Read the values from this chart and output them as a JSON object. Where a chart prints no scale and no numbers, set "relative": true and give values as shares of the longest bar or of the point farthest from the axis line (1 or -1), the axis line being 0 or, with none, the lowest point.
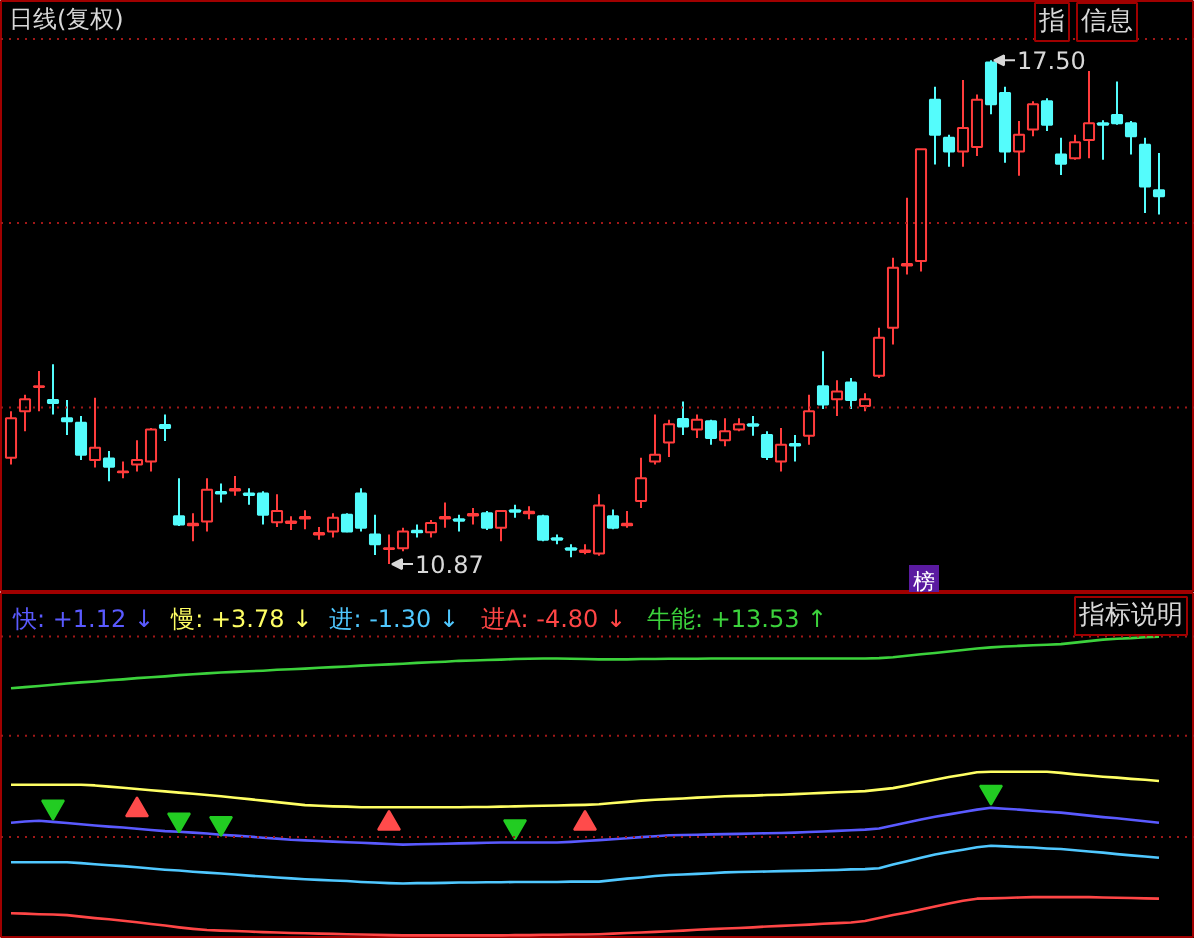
{
  "chart_data": [
    {
      "type": "candlestick",
      "title": "日线(复权)",
      "categories": [
        null,
        null,
        null,
        null,
        null,
        null,
        null,
        null,
        null,
        null,
        null,
        null,
        null,
        null,
        null,
        null,
        null,
        null,
        null,
        null,
        null,
        null,
        null,
        null,
        null,
        null,
        null,
        null,
        null,
        null,
        null,
        null,
        null,
        null,
        null,
        null,
        null,
        null,
        null,
        null,
        null,
        null,
        null,
        null,
        null,
        null,
        null,
        null,
        null,
        null,
        null,
        null,
        null,
        null,
        null,
        null,
        null,
        null,
        null,
        null,
        null,
        null,
        null,
        null,
        null,
        null,
        null,
        null,
        null,
        null,
        null,
        null,
        null,
        null,
        null,
        null,
        null,
        null,
        null,
        null,
        null,
        null,
        null
      ],
      "ohlc": [
        [
          12.27,
          12.88,
          12.18,
          12.79
        ],
        [
          12.88,
          13.1,
          12.62,
          13.04
        ],
        [
          13.2,
          13.41,
          12.88,
          13.21
        ],
        [
          13.03,
          13.5,
          12.84,
          12.99
        ],
        [
          12.79,
          13.03,
          12.57,
          12.75
        ],
        [
          12.73,
          12.82,
          12.24,
          12.31
        ],
        [
          12.24,
          13.06,
          12.14,
          12.4
        ],
        [
          12.26,
          12.36,
          11.96,
          12.15
        ],
        [
          12.08,
          12.22,
          12.0,
          12.09
        ],
        [
          12.18,
          12.5,
          12.09,
          12.24
        ],
        [
          12.22,
          12.66,
          12.09,
          12.64
        ],
        [
          12.7,
          12.84,
          12.49,
          12.66
        ],
        [
          11.5,
          12.0,
          11.37,
          11.39
        ],
        [
          11.38,
          11.54,
          11.17,
          11.4
        ],
        [
          11.43,
          12.0,
          11.3,
          11.85
        ],
        [
          11.82,
          11.93,
          11.68,
          11.8
        ],
        [
          11.84,
          12.03,
          11.77,
          11.86
        ],
        [
          11.8,
          11.87,
          11.65,
          11.78
        ],
        [
          11.8,
          11.83,
          11.39,
          11.52
        ],
        [
          11.42,
          11.79,
          11.36,
          11.57
        ],
        [
          11.41,
          11.5,
          11.32,
          11.43
        ],
        [
          11.47,
          11.58,
          11.33,
          11.49
        ],
        [
          11.26,
          11.36,
          11.19,
          11.28
        ],
        [
          11.3,
          11.54,
          11.22,
          11.48
        ],
        [
          11.52,
          11.54,
          11.29,
          11.3
        ],
        [
          11.8,
          11.87,
          11.3,
          11.35
        ],
        [
          11.26,
          11.52,
          10.99,
          11.13
        ],
        [
          11.07,
          11.26,
          10.87,
          11.08
        ],
        [
          11.08,
          11.35,
          11.04,
          11.3
        ],
        [
          11.31,
          11.39,
          11.22,
          11.29
        ],
        [
          11.29,
          11.45,
          11.22,
          11.41
        ],
        [
          11.47,
          11.68,
          11.35,
          11.49
        ],
        [
          11.46,
          11.52,
          11.3,
          11.44
        ],
        [
          11.51,
          11.61,
          11.39,
          11.53
        ],
        [
          11.54,
          11.57,
          11.32,
          11.35
        ],
        [
          11.35,
          11.58,
          11.17,
          11.57
        ],
        [
          11.58,
          11.65,
          11.48,
          11.56
        ],
        [
          11.54,
          11.63,
          11.46,
          11.56
        ],
        [
          11.5,
          11.52,
          11.17,
          11.19
        ],
        [
          11.21,
          11.26,
          11.13,
          11.19
        ],
        [
          11.08,
          11.13,
          10.96,
          11.06
        ],
        [
          11.03,
          11.13,
          11.0,
          11.05
        ],
        [
          11.01,
          11.79,
          10.98,
          11.64
        ],
        [
          11.5,
          11.59,
          11.33,
          11.35
        ],
        [
          11.38,
          11.57,
          11.35,
          11.4
        ],
        [
          11.7,
          12.27,
          11.61,
          12.0
        ],
        [
          12.22,
          12.84,
          12.18,
          12.31
        ],
        [
          12.47,
          12.77,
          12.28,
          12.71
        ],
        [
          12.78,
          13.01,
          12.57,
          12.68
        ],
        [
          12.64,
          12.84,
          12.53,
          12.77
        ],
        [
          12.75,
          12.77,
          12.44,
          12.53
        ],
        [
          12.5,
          12.79,
          12.42,
          12.62
        ],
        [
          12.64,
          12.79,
          12.62,
          12.71
        ],
        [
          12.71,
          12.82,
          12.56,
          12.69
        ],
        [
          12.57,
          12.62,
          12.24,
          12.28
        ],
        [
          12.22,
          12.66,
          12.09,
          12.44
        ],
        [
          12.45,
          12.57,
          12.22,
          12.43
        ],
        [
          12.56,
          13.1,
          12.44,
          12.88
        ],
        [
          13.21,
          13.67,
          12.91,
          12.97
        ],
        [
          13.04,
          13.29,
          12.82,
          13.14
        ],
        [
          13.26,
          13.32,
          12.91,
          13.03
        ],
        [
          12.95,
          13.12,
          12.88,
          13.04
        ],
        [
          13.35,
          13.98,
          13.32,
          13.85
        ],
        [
          13.98,
          14.9,
          13.76,
          14.77
        ],
        [
          14.8,
          15.69,
          14.68,
          14.82
        ],
        [
          14.86,
          16.33,
          14.72,
          16.33
        ],
        [
          16.98,
          17.15,
          16.13,
          16.52
        ],
        [
          16.48,
          16.52,
          16.1,
          16.3
        ],
        [
          16.3,
          17.24,
          16.1,
          16.61
        ],
        [
          16.36,
          17.05,
          16.24,
          16.98
        ],
        [
          17.47,
          17.5,
          16.79,
          16.92
        ],
        [
          17.07,
          17.15,
          16.15,
          16.3
        ],
        [
          16.3,
          16.7,
          15.98,
          16.52
        ],
        [
          16.59,
          16.96,
          16.5,
          16.92
        ],
        [
          16.96,
          17.0,
          16.57,
          16.65
        ],
        [
          16.26,
          16.48,
          15.99,
          16.14
        ],
        [
          16.21,
          16.52,
          16.19,
          16.42
        ],
        [
          16.45,
          17.36,
          16.21,
          16.67
        ],
        [
          16.67,
          16.71,
          16.19,
          16.65
        ],
        [
          16.78,
          17.22,
          16.65,
          16.67
        ],
        [
          16.67,
          16.7,
          16.26,
          16.5
        ],
        [
          16.39,
          16.48,
          15.49,
          15.84
        ],
        [
          15.79,
          16.28,
          15.47,
          15.71
        ]
      ],
      "colors": [
        "#ff3c3c",
        "#ff3c3c",
        "#ff3c3c",
        "#54fcfc",
        "#54fcfc",
        "#54fcfc",
        "#ff3c3c",
        "#54fcfc",
        "#ff3c3c",
        "#ff3c3c",
        "#ff3c3c",
        "#54fcfc",
        "#54fcfc",
        "#ff3c3c",
        "#ff3c3c",
        "#54fcfc",
        "#ff3c3c",
        "#54fcfc",
        "#54fcfc",
        "#ff3c3c",
        "#ff3c3c",
        "#ff3c3c",
        "#ff3c3c",
        "#ff3c3c",
        "#54fcfc",
        "#54fcfc",
        "#54fcfc",
        "#ff3c3c",
        "#ff3c3c",
        "#54fcfc",
        "#ff3c3c",
        "#ff3c3c",
        "#54fcfc",
        "#ff3c3c",
        "#54fcfc",
        "#ff3c3c",
        "#54fcfc",
        "#ff3c3c",
        "#54fcfc",
        "#54fcfc",
        "#54fcfc",
        "#ff3c3c",
        "#ff3c3c",
        "#54fcfc",
        "#ff3c3c",
        "#ff3c3c",
        "#ff3c3c",
        "#ff3c3c",
        "#54fcfc",
        "#ff3c3c",
        "#54fcfc",
        "#ff3c3c",
        "#ff3c3c",
        "#54fcfc",
        "#54fcfc",
        "#ff3c3c",
        "#54fcfc",
        "#ff3c3c",
        "#54fcfc",
        "#ff3c3c",
        "#54fcfc",
        "#ff3c3c",
        "#ff3c3c",
        "#ff3c3c",
        "#ff3c3c",
        "#ff3c3c",
        "#54fcfc",
        "#54fcfc",
        "#ff3c3c",
        "#ff3c3c",
        "#54fcfc",
        "#54fcfc",
        "#ff3c3c",
        "#ff3c3c",
        "#54fcfc",
        "#54fcfc",
        "#ff3c3c",
        "#ff3c3c",
        "#54fcfc",
        "#54fcfc",
        "#54fcfc",
        "#54fcfc",
        "#54fcfc"
      ],
      "ylim": [
        10.49,
        18.28
      ],
      "yticks": [
        {
          "value": 12.93,
          "label": null
        },
        {
          "value": 15.36,
          "label": null
        },
        {
          "value": 17.78,
          "label": null
        }
      ],
      "grid": "y",
      "tick_labels": false,
      "annotations": [
        "指",
        "信息",
        "榜",
        "17.50",
        "10.87"
      ]
    },
    {
      "type": "line",
      "relative": true,
      "categories": [
        null,
        null,
        null,
        null,
        null,
        null,
        null,
        null,
        null,
        null,
        null,
        null,
        null,
        null,
        null,
        null,
        null,
        null,
        null,
        null,
        null,
        null,
        null,
        null,
        null,
        null,
        null,
        null,
        null,
        null,
        null,
        null,
        null,
        null,
        null,
        null,
        null,
        null,
        null,
        null,
        null,
        null,
        null,
        null,
        null,
        null,
        null,
        null,
        null,
        null,
        null,
        null,
        null,
        null,
        null,
        null,
        null,
        null,
        null,
        null,
        null,
        null,
        null,
        null,
        null,
        null,
        null,
        null,
        null,
        null,
        null,
        null,
        null,
        null,
        null,
        null,
        null,
        null,
        null,
        null,
        null,
        null,
        null
      ],
      "series": [
        {
          "name": "快: +1.12 ↓",
          "color": "#5a5aff",
          "values": [
            0.377,
            0.381,
            0.384,
            0.38,
            0.376,
            0.372,
            0.368,
            0.364,
            0.361,
            0.357,
            0.353,
            0.349,
            0.347,
            0.344,
            0.341,
            0.337,
            0.334,
            0.331,
            0.327,
            0.324,
            0.32,
            0.318,
            0.316,
            0.314,
            0.312,
            0.31,
            0.308,
            0.306,
            0.304,
            0.305,
            0.306,
            0.307,
            0.308,
            0.309,
            0.31,
            0.311,
            0.311,
            0.311,
            0.311,
            0.311,
            0.313,
            0.316,
            0.319,
            0.322,
            0.325,
            0.329,
            0.332,
            0.335,
            0.336,
            0.337,
            0.338,
            0.339,
            0.34,
            0.341,
            0.342,
            0.343,
            0.344,
            0.346,
            0.348,
            0.35,
            0.352,
            0.354,
            0.358,
            0.368,
            0.378,
            0.388,
            0.397,
            0.405,
            0.413,
            0.421,
            0.427,
            0.424,
            0.421,
            0.417,
            0.414,
            0.411,
            0.406,
            0.401,
            0.396,
            0.392,
            0.387,
            0.382,
            0.377
          ]
        },
        {
          "name": "慢: +3.78 ↓",
          "color": "#ffff64",
          "values": [
            0.504,
            0.504,
            0.504,
            0.504,
            0.504,
            0.504,
            0.502,
            0.498,
            0.494,
            0.49,
            0.486,
            0.482,
            0.478,
            0.474,
            0.47,
            0.466,
            0.461,
            0.456,
            0.451,
            0.446,
            0.441,
            0.436,
            0.434,
            0.432,
            0.431,
            0.429,
            0.429,
            0.429,
            0.429,
            0.429,
            0.429,
            0.429,
            0.429,
            0.43,
            0.43,
            0.431,
            0.432,
            0.433,
            0.434,
            0.435,
            0.436,
            0.437,
            0.439,
            0.443,
            0.447,
            0.451,
            0.454,
            0.456,
            0.458,
            0.461,
            0.463,
            0.466,
            0.467,
            0.468,
            0.47,
            0.471,
            0.473,
            0.475,
            0.477,
            0.479,
            0.481,
            0.483,
            0.488,
            0.493,
            0.502,
            0.512,
            0.521,
            0.53,
            0.538,
            0.546,
            0.548,
            0.548,
            0.548,
            0.548,
            0.548,
            0.544,
            0.539,
            0.535,
            0.531,
            0.528,
            0.524,
            0.521,
            0.517
          ]
        },
        {
          "name": "进: -1.30 ↓",
          "color": "#50c8ff",
          "values": [
            0.245,
            0.245,
            0.245,
            0.245,
            0.245,
            0.242,
            0.238,
            0.235,
            0.232,
            0.228,
            0.224,
            0.22,
            0.217,
            0.213,
            0.21,
            0.207,
            0.204,
            0.2,
            0.197,
            0.194,
            0.191,
            0.188,
            0.186,
            0.184,
            0.182,
            0.179,
            0.177,
            0.175,
            0.174,
            0.175,
            0.175,
            0.176,
            0.177,
            0.177,
            0.178,
            0.178,
            0.179,
            0.179,
            0.179,
            0.179,
            0.18,
            0.18,
            0.18,
            0.185,
            0.19,
            0.194,
            0.199,
            0.202,
            0.204,
            0.206,
            0.208,
            0.211,
            0.212,
            0.213,
            0.214,
            0.215,
            0.216,
            0.217,
            0.218,
            0.219,
            0.221,
            0.222,
            0.225,
            0.237,
            0.248,
            0.26,
            0.271,
            0.279,
            0.287,
            0.295,
            0.3,
            0.298,
            0.296,
            0.294,
            0.291,
            0.289,
            0.285,
            0.281,
            0.277,
            0.272,
            0.268,
            0.264,
            0.26
          ]
        },
        {
          "name": "进A: -4.80 ↓",
          "color": "#ff4646",
          "values": [
            0.074,
            0.073,
            0.071,
            0.07,
            0.068,
            0.063,
            0.058,
            0.054,
            0.049,
            0.044,
            0.038,
            0.033,
            0.027,
            0.022,
            0.018,
            0.016,
            0.015,
            0.013,
            0.011,
            0.01,
            0.008,
            0.007,
            0.006,
            0.005,
            0.004,
            0.003,
            0.002,
            0.001,
            0,
            0,
            0,
            0,
            0,
            0,
            0,
            0,
            0.001,
            0.001,
            0.002,
            0.002,
            0.003,
            0.003,
            0.004,
            0.006,
            0.008,
            0.01,
            0.012,
            0.014,
            0.016,
            0.019,
            0.021,
            0.023,
            0.025,
            0.027,
            0.03,
            0.032,
            0.034,
            0.036,
            0.039,
            0.041,
            0.043,
            0.048,
            0.058,
            0.068,
            0.077,
            0.087,
            0.097,
            0.107,
            0.116,
            0.123,
            0.124,
            0.125,
            0.127,
            0.128,
            0.128,
            0.128,
            0.128,
            0.128,
            0.127,
            0.126,
            0.125,
            0.124,
            0.123
          ]
        },
        {
          "name": "牛能: +13.53 ↑",
          "color": "#3cd23c",
          "values": [
            0.827,
            0.831,
            0.835,
            0.839,
            0.843,
            0.847,
            0.85,
            0.854,
            0.857,
            0.861,
            0.864,
            0.867,
            0.871,
            0.874,
            0.877,
            0.88,
            0.882,
            0.884,
            0.886,
            0.889,
            0.891,
            0.893,
            0.896,
            0.898,
            0.9,
            0.903,
            0.905,
            0.907,
            0.909,
            0.912,
            0.914,
            0.916,
            0.919,
            0.92,
            0.922,
            0.923,
            0.925,
            0.926,
            0.927,
            0.927,
            0.926,
            0.925,
            0.924,
            0.924,
            0.924,
            0.925,
            0.925,
            0.926,
            0.926,
            0.926,
            0.927,
            0.927,
            0.927,
            0.927,
            0.927,
            0.927,
            0.927,
            0.927,
            0.927,
            0.927,
            0.927,
            0.927,
            0.928,
            0.931,
            0.936,
            0.941,
            0.945,
            0.95,
            0.955,
            0.96,
            0.964,
            0.967,
            0.969,
            0.971,
            0.973,
            0.975,
            0.98,
            0.985,
            0.99,
            0.993,
            0.995,
            0.998,
            1.0
          ]
        },
        {
          "type": "scatter",
          "marker": "triangle_down",
          "color": "#22cc22",
          "values": [
            null,
            null,
            null,
            0.43,
            null,
            null,
            null,
            null,
            null,
            null,
            null,
            null,
            0.387,
            null,
            null,
            0.375,
            null,
            null,
            null,
            null,
            null,
            null,
            null,
            null,
            null,
            null,
            null,
            null,
            null,
            null,
            null,
            null,
            null,
            null,
            null,
            null,
            0.364,
            null,
            null,
            null,
            null,
            null,
            null,
            null,
            null,
            null,
            null,
            null,
            null,
            null,
            null,
            null,
            null,
            null,
            null,
            null,
            null,
            null,
            null,
            null,
            null,
            null,
            null,
            null,
            null,
            null,
            null,
            null,
            null,
            null,
            0.48,
            null,
            null,
            null,
            null,
            null,
            null,
            null,
            null,
            null,
            null,
            null,
            null
          ]
        },
        {
          "type": "scatter",
          "marker": "triangle",
          "color": "#ff4b4b",
          "values": [
            null,
            null,
            null,
            null,
            null,
            null,
            null,
            null,
            null,
            0.42,
            null,
            null,
            null,
            null,
            null,
            null,
            null,
            null,
            null,
            null,
            null,
            null,
            null,
            null,
            null,
            null,
            null,
            0.375,
            null,
            null,
            null,
            null,
            null,
            null,
            null,
            null,
            null,
            null,
            null,
            null,
            null,
            0.375,
            null,
            null,
            null,
            null,
            null,
            null,
            null,
            null,
            null,
            null,
            null,
            null,
            null,
            null,
            null,
            null,
            null,
            null,
            null,
            null,
            null,
            null,
            null,
            null,
            null,
            null,
            null,
            null,
            null,
            null,
            null,
            null,
            null,
            null,
            null,
            null,
            null,
            null,
            null,
            null,
            null
          ]
        }
      ],
      "ref_lines": [
        {
          "axis": "y",
          "value": 0.329,
          "color": "#a01818",
          "line_style": "dotted"
        },
        {
          "axis": "y",
          "value": 0.668,
          "color": "#a01818",
          "line_style": "dotted"
        },
        {
          "axis": "y",
          "value": 1.0,
          "color": "#a01818",
          "line_style": "dotted"
        }
      ],
      "legend": "top left",
      "tick_labels": false,
      "annotations": [
        "指标说明"
      ]
    }
  ]
}
